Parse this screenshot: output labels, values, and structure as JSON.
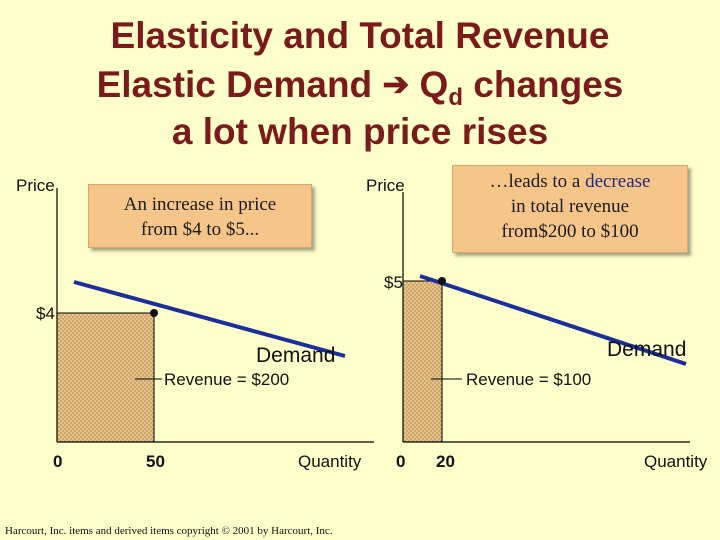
{
  "title": {
    "line1": "Elasticity and Total Revenue",
    "line2_pre": "Elastic Demand",
    "arrow": "➔",
    "line2_q": "Q",
    "line2_sub": "d",
    "line2_post": "changes",
    "line3": "a lot when price rises"
  },
  "left_graph": {
    "y_label": "Price",
    "x_label": "Quantity",
    "origin_label": "0",
    "price_label": "$4",
    "quantity_label": "50",
    "demand_label": "Demand",
    "revenue_label": "Revenue = $200",
    "price": 4,
    "quantity": 50,
    "callout": {
      "line1": "An increase in price",
      "line2": "from $4 to $5..."
    }
  },
  "right_graph": {
    "y_label": "Price",
    "x_label": "Quantity",
    "origin_label": "0",
    "price_label": "$5",
    "quantity_label": "20",
    "demand_label": "Demand",
    "revenue_label": "Revenue = $100",
    "price": 5,
    "quantity": 20,
    "callout": {
      "line1_pre": "…leads to a",
      "line1_highlight": "decrease",
      "line2": "in total revenue",
      "line3": "from$200 to $100"
    }
  },
  "colors": {
    "background": "#ffffcc",
    "title": "#7b1a1a",
    "demand_line": "#1a2f99",
    "revenue_fill": "#e8c48a",
    "callout_fill": "#f6c58a"
  },
  "copyright": "Harcourt, Inc. items and derived items copyright © 2001 by Harcourt, Inc."
}
